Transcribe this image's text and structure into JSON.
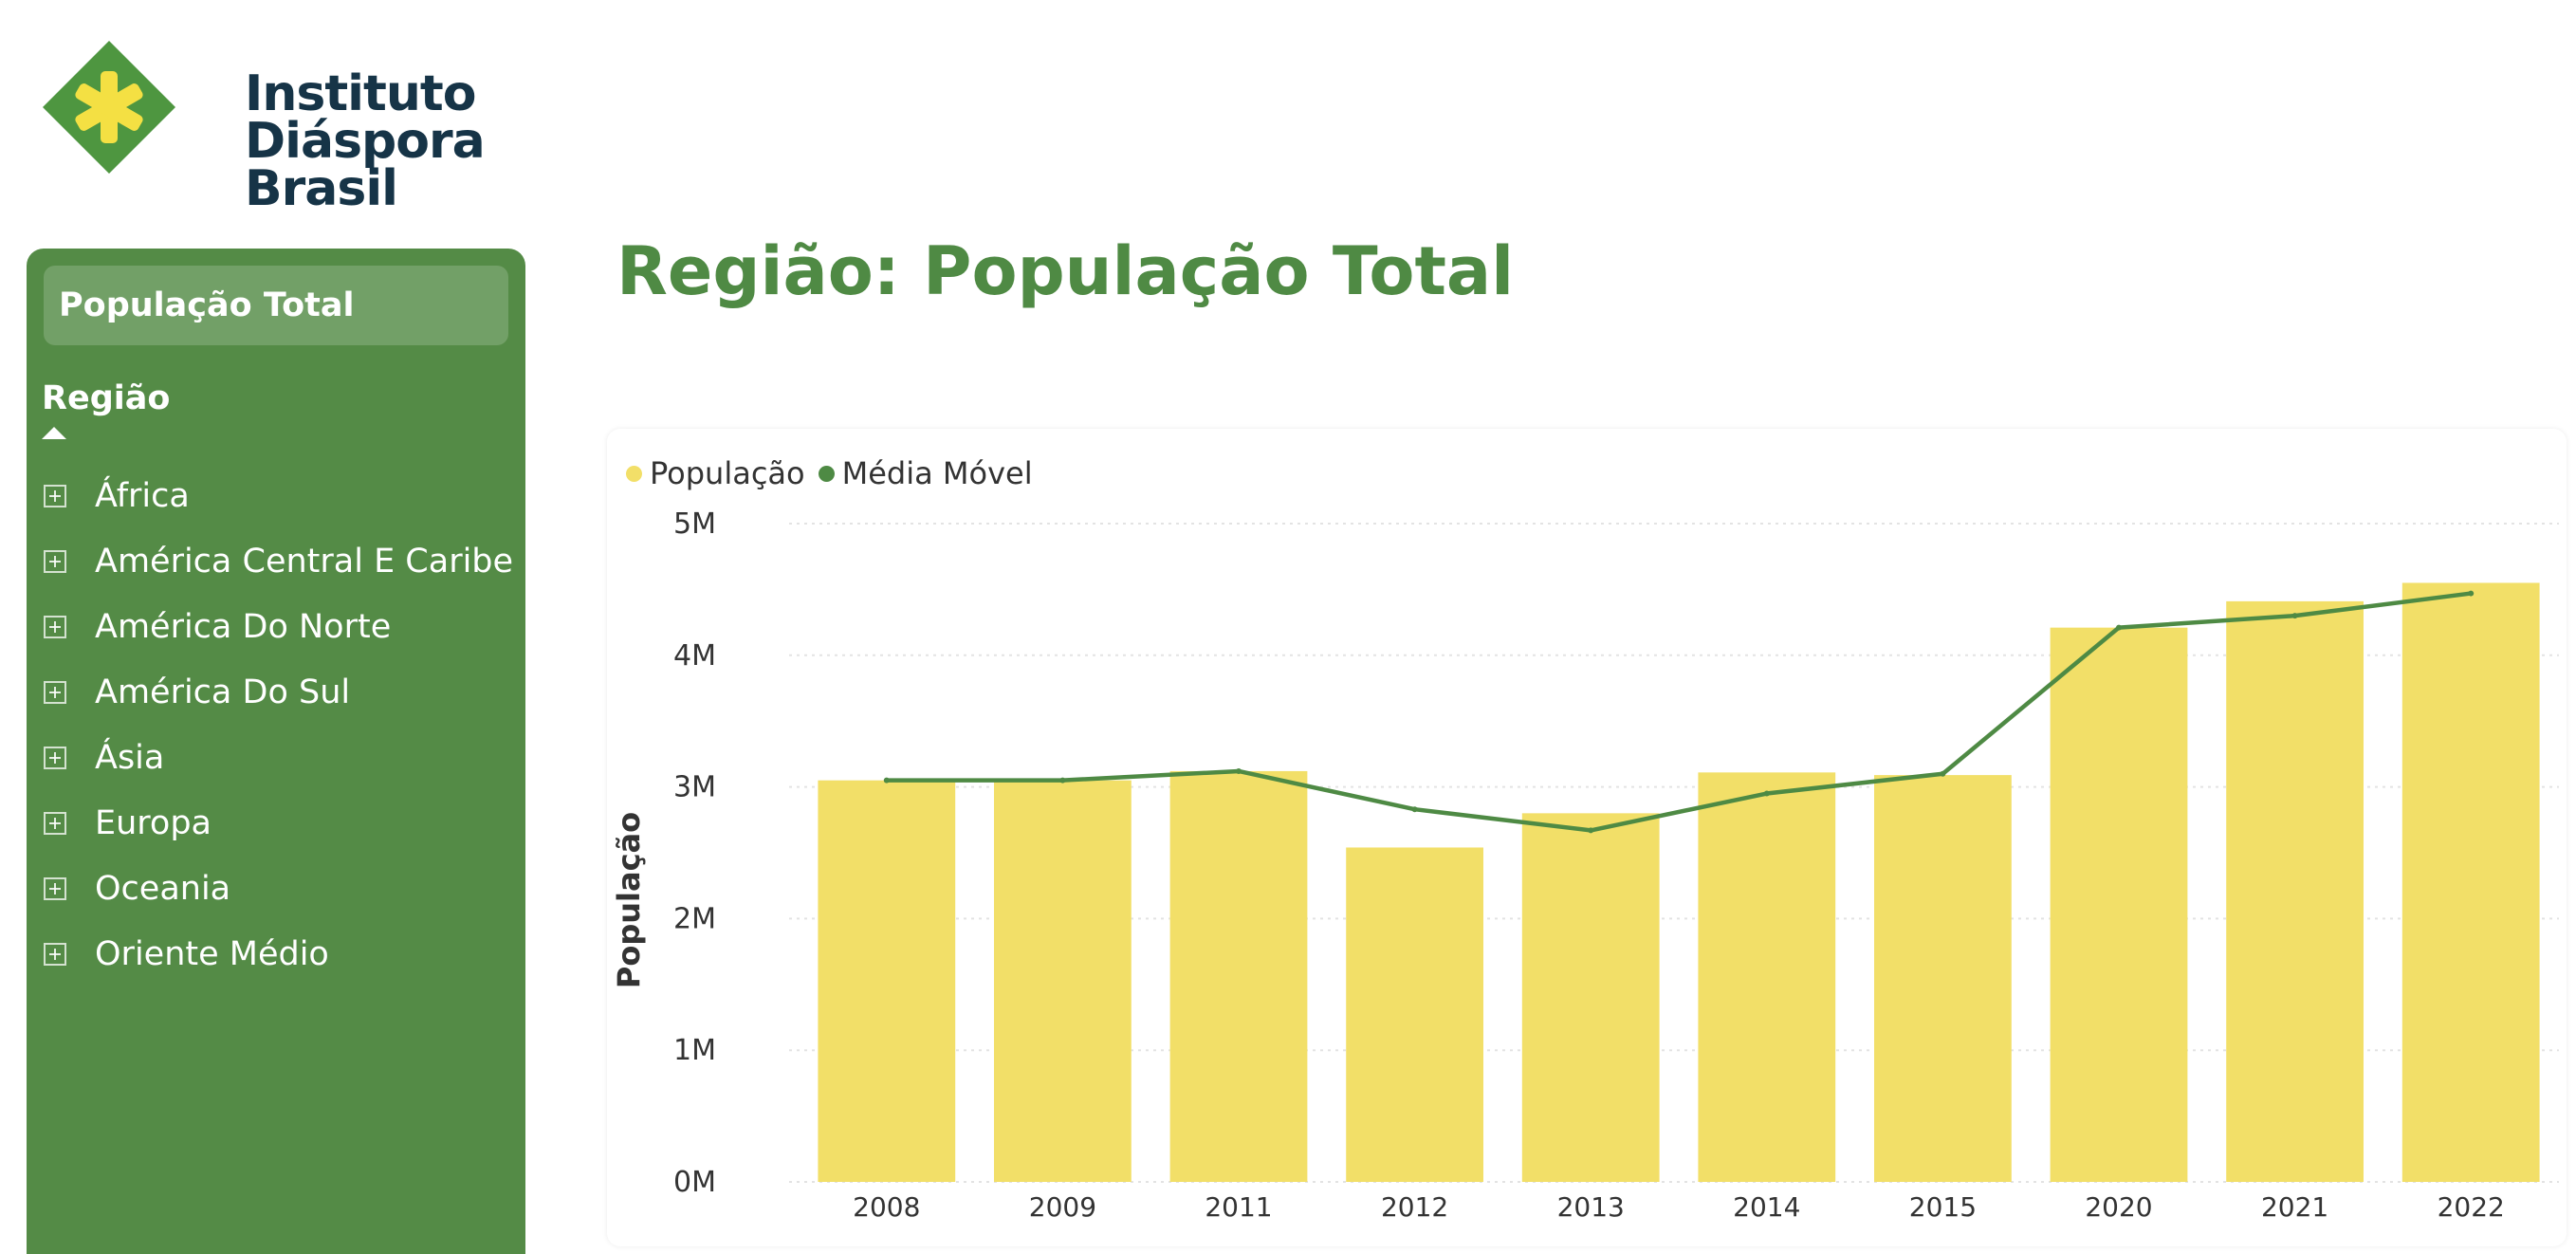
{
  "logo": {
    "lines": [
      "Instituto",
      "Diáspora",
      "Brasil"
    ],
    "icon": "diamond-asterisk-logo-icon",
    "colors": {
      "diamond": "#4e9640",
      "asterisk": "#f4e043",
      "text": "#163447"
    }
  },
  "sidebar": {
    "measure_button": "População Total",
    "header": "Região",
    "items": [
      {
        "label": "África"
      },
      {
        "label": "América Central E Caribe"
      },
      {
        "label": "América Do Norte"
      },
      {
        "label": "América Do Sul"
      },
      {
        "label": "Ásia"
      },
      {
        "label": "Europa"
      },
      {
        "label": "Oceania"
      },
      {
        "label": "Oriente Médio"
      }
    ],
    "expand_icon": "plus-square-icon",
    "background": "#548b46"
  },
  "page": {
    "title": "Região: População Total"
  },
  "chart_data": {
    "type": "bar",
    "categories": [
      "2008",
      "2009",
      "2011",
      "2012",
      "2013",
      "2014",
      "2015",
      "2020",
      "2021",
      "2022"
    ],
    "series": [
      {
        "name": "População",
        "type": "bar",
        "color": "#f2df68",
        "values": [
          3.05,
          3.05,
          3.12,
          2.54,
          2.8,
          3.11,
          3.09,
          4.21,
          4.41,
          4.55
        ]
      },
      {
        "name": "Média Móvel",
        "type": "line",
        "color": "#4e8a44",
        "values": [
          3.05,
          3.05,
          3.12,
          2.83,
          2.67,
          2.95,
          3.1,
          4.21,
          4.3,
          4.47
        ]
      }
    ],
    "ylabel": "População",
    "xlabel": "",
    "ylim": [
      0,
      5
    ],
    "yticks": [
      {
        "value": 0,
        "label": "0M"
      },
      {
        "value": 1,
        "label": "1M"
      },
      {
        "value": 2,
        "label": "2M"
      },
      {
        "value": 3,
        "label": "3M"
      },
      {
        "value": 4,
        "label": "4M"
      },
      {
        "value": 5,
        "label": "5M"
      }
    ],
    "legend_position": "top-left",
    "grid": true
  }
}
